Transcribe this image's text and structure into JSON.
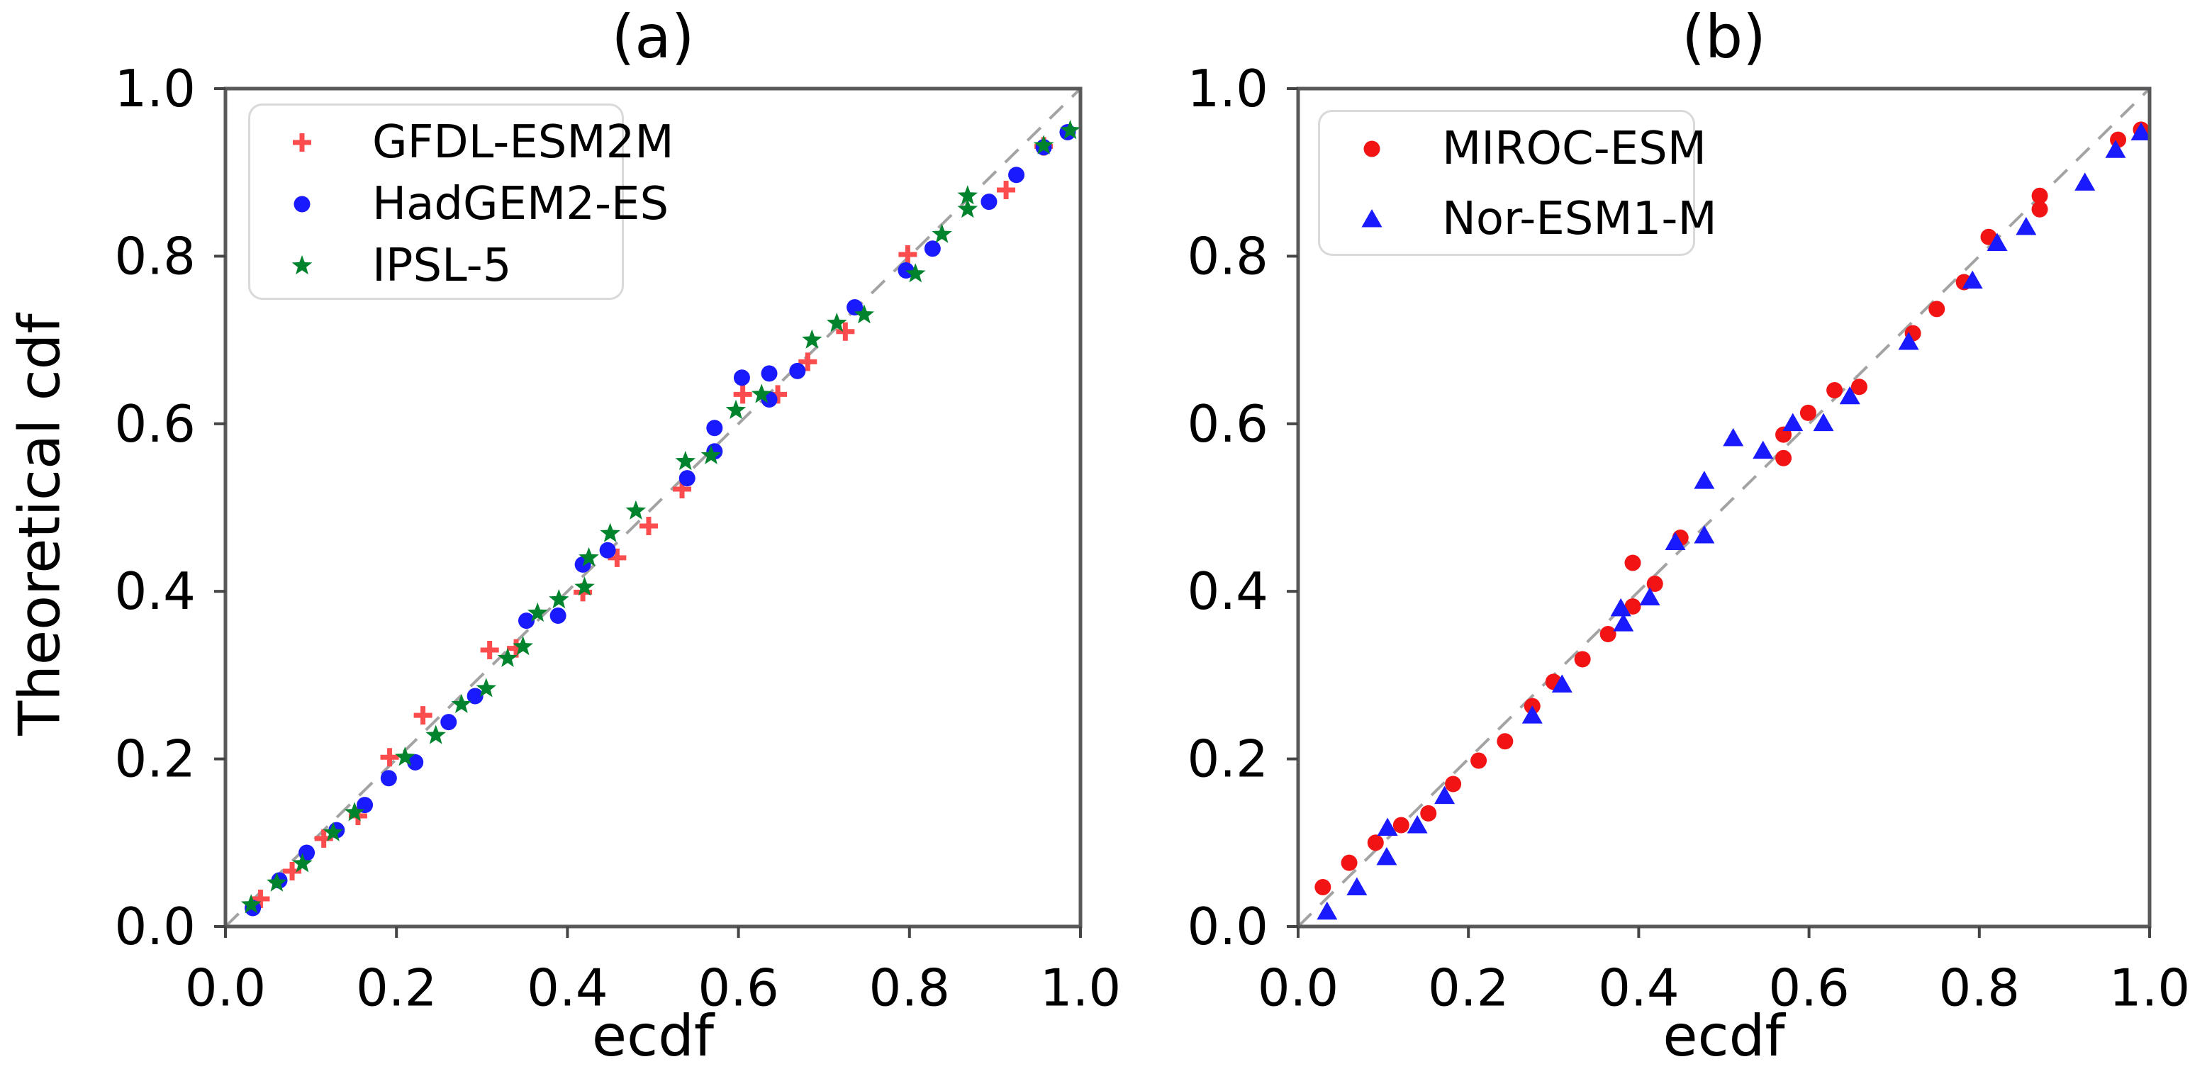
{
  "chart_data": [
    {
      "id": "a",
      "type": "scatter",
      "title": "(a)",
      "xlabel": "ecdf",
      "ylabel": "Theoretical cdf",
      "xlim": [
        0.0,
        1.0
      ],
      "ylim": [
        0.0,
        1.0
      ],
      "xticks": {
        "values": [
          0.0,
          0.2,
          0.4,
          0.6,
          0.8,
          1.0
        ],
        "labels": [
          "0.0",
          "0.2",
          "0.4",
          "0.6",
          "0.8",
          "1.0"
        ]
      },
      "yticks": {
        "values": [
          0.0,
          0.2,
          0.4,
          0.6,
          0.8,
          1.0
        ],
        "labels": [
          "0.0",
          "0.2",
          "0.4",
          "0.6",
          "0.8",
          "1.0"
        ]
      },
      "grid": false,
      "legend_position": "upper left",
      "reference_line": {
        "kind": "identity y=x",
        "style": "dashed",
        "color": "#a3a3a3"
      },
      "series": [
        {
          "name": "GFDL-ESM2M",
          "marker": "plus",
          "color": "#fb4d4d",
          "points": [
            [
              0.041,
              0.033
            ],
            [
              0.078,
              0.066
            ],
            [
              0.115,
              0.105
            ],
            [
              0.155,
              0.132
            ],
            [
              0.192,
              0.202
            ],
            [
              0.231,
              0.252
            ],
            [
              0.309,
              0.33
            ],
            [
              0.34,
              0.332
            ],
            [
              0.418,
              0.399
            ],
            [
              0.458,
              0.44
            ],
            [
              0.495,
              0.478
            ],
            [
              0.534,
              0.522
            ],
            [
              0.605,
              0.635
            ],
            [
              0.646,
              0.635
            ],
            [
              0.681,
              0.674
            ],
            [
              0.725,
              0.71
            ],
            [
              0.798,
              0.802
            ],
            [
              0.913,
              0.879
            ],
            [
              0.957,
              0.931
            ]
          ]
        },
        {
          "name": "HadGEM2-ES",
          "marker": "circle",
          "color": "#1a1aff",
          "points": [
            [
              0.032,
              0.022
            ],
            [
              0.063,
              0.055
            ],
            [
              0.095,
              0.088
            ],
            [
              0.13,
              0.115
            ],
            [
              0.163,
              0.145
            ],
            [
              0.191,
              0.177
            ],
            [
              0.222,
              0.196
            ],
            [
              0.261,
              0.244
            ],
            [
              0.292,
              0.275
            ],
            [
              0.352,
              0.365
            ],
            [
              0.389,
              0.371
            ],
            [
              0.418,
              0.432
            ],
            [
              0.447,
              0.449
            ],
            [
              0.54,
              0.535
            ],
            [
              0.572,
              0.567
            ],
            [
              0.572,
              0.595
            ],
            [
              0.604,
              0.655
            ],
            [
              0.636,
              0.629
            ],
            [
              0.636,
              0.66
            ],
            [
              0.669,
              0.663
            ],
            [
              0.736,
              0.739
            ],
            [
              0.796,
              0.783
            ],
            [
              0.827,
              0.809
            ],
            [
              0.893,
              0.865
            ],
            [
              0.925,
              0.897
            ],
            [
              0.957,
              0.93
            ],
            [
              0.985,
              0.948
            ]
          ]
        },
        {
          "name": "IPSL-5",
          "marker": "star",
          "color": "#00832d",
          "points": [
            [
              0.03,
              0.026
            ],
            [
              0.06,
              0.052
            ],
            [
              0.09,
              0.075
            ],
            [
              0.126,
              0.112
            ],
            [
              0.151,
              0.136
            ],
            [
              0.21,
              0.202
            ],
            [
              0.246,
              0.228
            ],
            [
              0.276,
              0.265
            ],
            [
              0.305,
              0.284
            ],
            [
              0.33,
              0.32
            ],
            [
              0.348,
              0.334
            ],
            [
              0.365,
              0.374
            ],
            [
              0.39,
              0.39
            ],
            [
              0.42,
              0.405
            ],
            [
              0.425,
              0.44
            ],
            [
              0.45,
              0.469
            ],
            [
              0.48,
              0.496
            ],
            [
              0.538,
              0.555
            ],
            [
              0.568,
              0.562
            ],
            [
              0.597,
              0.616
            ],
            [
              0.627,
              0.635
            ],
            [
              0.686,
              0.7
            ],
            [
              0.715,
              0.72
            ],
            [
              0.747,
              0.73
            ],
            [
              0.807,
              0.779
            ],
            [
              0.838,
              0.826
            ],
            [
              0.868,
              0.856
            ],
            [
              0.868,
              0.872
            ],
            [
              0.957,
              0.932
            ],
            [
              0.988,
              0.95
            ]
          ]
        }
      ]
    },
    {
      "id": "b",
      "type": "scatter",
      "title": "(b)",
      "xlabel": "ecdf",
      "ylabel": "",
      "xlim": [
        0.0,
        1.0
      ],
      "ylim": [
        0.0,
        1.0
      ],
      "xticks": {
        "values": [
          0.0,
          0.2,
          0.4,
          0.6,
          0.8,
          1.0
        ],
        "labels": [
          "0.0",
          "0.2",
          "0.4",
          "0.6",
          "0.8",
          "1.0"
        ]
      },
      "yticks": {
        "values": [
          0.0,
          0.2,
          0.4,
          0.6,
          0.8,
          1.0
        ],
        "labels": [
          "0.0",
          "0.2",
          "0.4",
          "0.6",
          "0.8",
          "1.0"
        ]
      },
      "grid": false,
      "legend_position": "upper left",
      "reference_line": {
        "kind": "identity y=x",
        "style": "dashed",
        "color": "#a3a3a3"
      },
      "series": [
        {
          "name": "MIROC-ESM",
          "marker": "circle",
          "color": "#f21414",
          "points": [
            [
              0.029,
              0.047
            ],
            [
              0.06,
              0.076
            ],
            [
              0.091,
              0.1
            ],
            [
              0.121,
              0.121
            ],
            [
              0.153,
              0.135
            ],
            [
              0.182,
              0.17
            ],
            [
              0.212,
              0.198
            ],
            [
              0.243,
              0.221
            ],
            [
              0.275,
              0.263
            ],
            [
              0.3,
              0.292
            ],
            [
              0.334,
              0.319
            ],
            [
              0.364,
              0.349
            ],
            [
              0.393,
              0.382
            ],
            [
              0.393,
              0.434
            ],
            [
              0.419,
              0.409
            ],
            [
              0.449,
              0.464
            ],
            [
              0.57,
              0.559
            ],
            [
              0.57,
              0.587
            ],
            [
              0.599,
              0.613
            ],
            [
              0.63,
              0.64
            ],
            [
              0.659,
              0.644
            ],
            [
              0.722,
              0.708
            ],
            [
              0.75,
              0.737
            ],
            [
              0.782,
              0.769
            ],
            [
              0.811,
              0.823
            ],
            [
              0.871,
              0.856
            ],
            [
              0.871,
              0.872
            ],
            [
              0.963,
              0.939
            ],
            [
              0.99,
              0.951
            ]
          ]
        },
        {
          "name": "Nor-ESM1-M",
          "marker": "triangle",
          "color": "#1a1aff",
          "points": [
            [
              0.034,
              0.018
            ],
            [
              0.069,
              0.047
            ],
            [
              0.104,
              0.083
            ],
            [
              0.105,
              0.118
            ],
            [
              0.14,
              0.121
            ],
            [
              0.172,
              0.156
            ],
            [
              0.275,
              0.252
            ],
            [
              0.31,
              0.289
            ],
            [
              0.379,
              0.38
            ],
            [
              0.382,
              0.362
            ],
            [
              0.413,
              0.393
            ],
            [
              0.443,
              0.459
            ],
            [
              0.477,
              0.467
            ],
            [
              0.477,
              0.532
            ],
            [
              0.511,
              0.583
            ],
            [
              0.546,
              0.568
            ],
            [
              0.581,
              0.601
            ],
            [
              0.617,
              0.601
            ],
            [
              0.648,
              0.633
            ],
            [
              0.717,
              0.698
            ],
            [
              0.792,
              0.771
            ],
            [
              0.821,
              0.816
            ],
            [
              0.855,
              0.835
            ],
            [
              0.924,
              0.888
            ],
            [
              0.96,
              0.927
            ],
            [
              0.99,
              0.948
            ]
          ]
        }
      ]
    }
  ]
}
